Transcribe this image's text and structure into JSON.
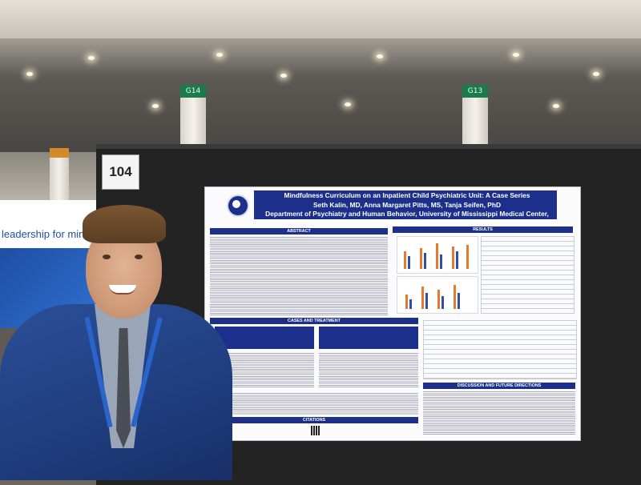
{
  "booth": {
    "number": "104"
  },
  "banner": {
    "text": "leadership for mind"
  },
  "pillars": {
    "left": "G14",
    "right": "G13"
  },
  "poster": {
    "title": "Mindfulness Curriculum on an Inpatient Child Psychiatric Unit: A Case Series",
    "authors": "Seth Kalin, MD, Anna Margaret Pitts, MS, Tanja Seifen, PhD",
    "affiliation": "Department of Psychiatry and Human Behavior, University of Mississippi Medical Center, Jackson, MS",
    "sections": {
      "abstract": "ABSTRACT",
      "results": "RESULTS",
      "cases": "CASES AND TREATMENT",
      "discussion": "DISCUSSION AND FUTURE DIRECTIONS",
      "citations": "CITATIONS"
    }
  },
  "colors": {
    "poster_header": "#1c2f8a",
    "booth_board": "#232323",
    "suit": "#2b4f98",
    "lanyard": "#2a63c9"
  }
}
